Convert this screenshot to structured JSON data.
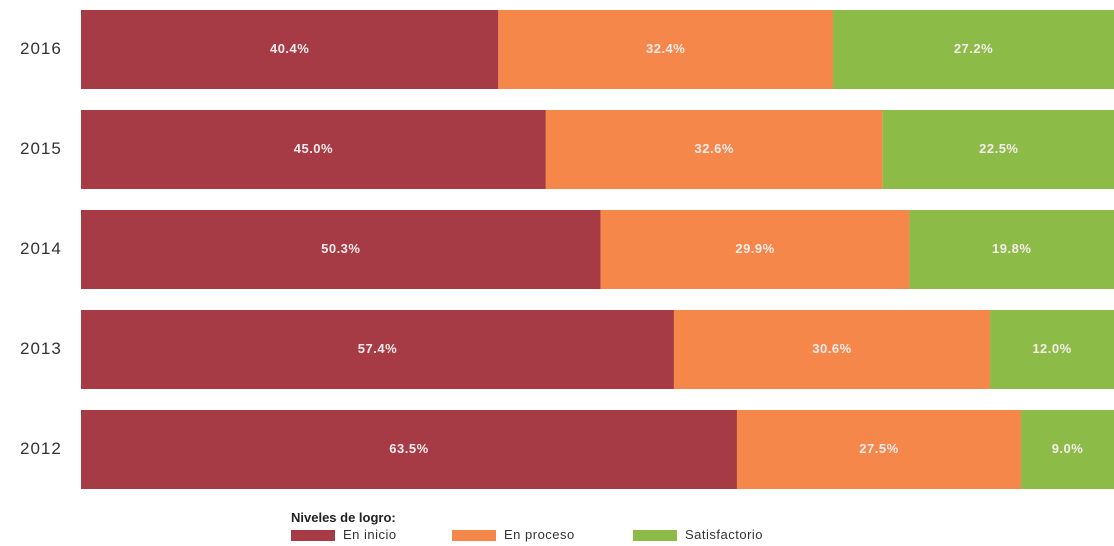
{
  "chart_data": {
    "type": "bar",
    "orientation": "horizontal",
    "stacked": true,
    "categories": [
      "2016",
      "2015",
      "2014",
      "2013",
      "2012"
    ],
    "series": [
      {
        "name": "En inicio",
        "color": "#a63a45",
        "values": [
          40.4,
          45.0,
          50.3,
          57.4,
          63.5
        ],
        "labels": [
          "40.4%",
          "45.0%",
          "50.3%",
          "57.4%",
          "63.5%"
        ]
      },
      {
        "name": "En proceso",
        "color": "#f5874a",
        "values": [
          32.4,
          32.6,
          29.9,
          30.6,
          27.5
        ],
        "labels": [
          "32.4%",
          "32.6%",
          "29.9%",
          "30.6%",
          "27.5%"
        ]
      },
      {
        "name": "Satisfactorio",
        "color": "#8dbb47",
        "values": [
          27.2,
          22.5,
          19.8,
          12.0,
          9.0
        ],
        "labels": [
          "27.2%",
          "22.5%",
          "19.8%",
          "12.0%",
          "9.0%"
        ]
      }
    ],
    "xlim": [
      0,
      100
    ],
    "grid": false,
    "legend": {
      "title": "Niveles de logro:",
      "position": "bottom-center"
    }
  }
}
